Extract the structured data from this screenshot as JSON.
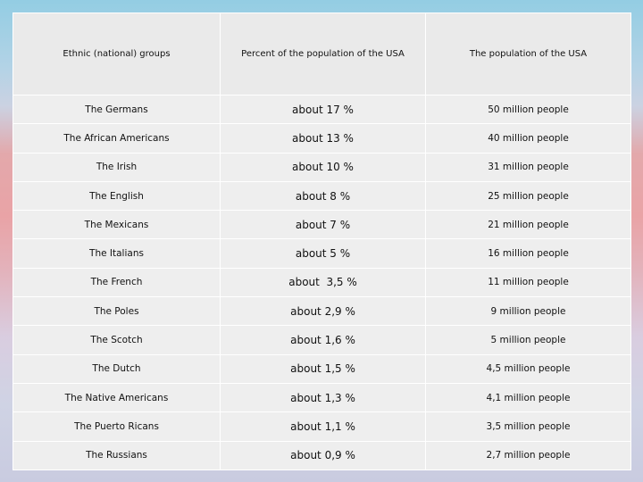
{
  "table": {
    "headers": [
      "Ethnic (national) groups",
      "Percent of the population of the USA",
      "The population of the USA"
    ],
    "rows": [
      {
        "group": "The Germans",
        "percent": "about 17 %",
        "population": "50 million people"
      },
      {
        "group": "The African Americans",
        "percent": "about 13 %",
        "population": "40 million people"
      },
      {
        "group": "The Irish",
        "percent": "about 10 %",
        "population": "31 million people"
      },
      {
        "group": "The English",
        "percent": "about 8 %",
        "population": "25 million people"
      },
      {
        "group": "The Mexicans",
        "percent": "about 7 %",
        "population": "21 million people"
      },
      {
        "group": "The Italians",
        "percent": "about 5 %",
        "population": "16 million people"
      },
      {
        "group": "The French",
        "percent": "about  3,5 %",
        "population": "11 million people"
      },
      {
        "group": "The Poles",
        "percent": "about 2,9 %",
        "population": "9 million people"
      },
      {
        "group": "The Scotch",
        "percent": "about 1,6 %",
        "population": "5 million people"
      },
      {
        "group": "The Dutch",
        "percent": "about 1,5 %",
        "population": "4,5 million people"
      },
      {
        "group": "The Native Americans",
        "percent": "about 1,3 %",
        "population": "4,1 million people"
      },
      {
        "group": "The Puerto Ricans",
        "percent": "about 1,1 %",
        "population": "3,5 million people"
      },
      {
        "group": "The Russians",
        "percent": "about 0,9 %",
        "population": "2,7 million people"
      }
    ]
  }
}
